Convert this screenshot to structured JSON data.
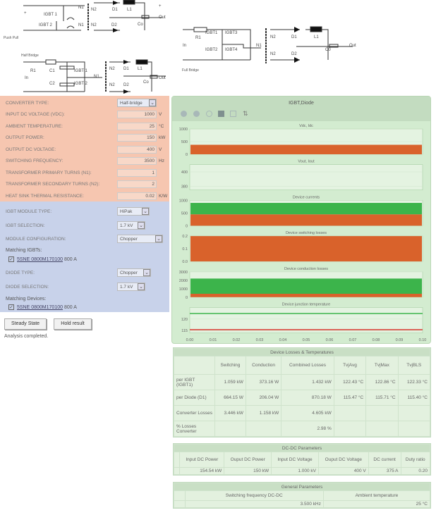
{
  "schematics": {
    "push_pull": {
      "caption": "Push Pull",
      "labels": [
        "IGBT 1",
        "IGBT 2",
        "N1",
        "N1",
        "N2",
        "N2",
        "D1",
        "D2",
        "L1",
        "Co",
        "In",
        "Out",
        "+",
        "-",
        "+",
        "-"
      ]
    },
    "half_bridge": {
      "caption": "Half Bridge",
      "labels": [
        "R1",
        "C1",
        "C2",
        "IGBT 1",
        "IGBT 2",
        "N1",
        "N2",
        "N2",
        "D1",
        "D2",
        "L1",
        "Co",
        "In",
        "Out",
        "+",
        "-",
        "+",
        "-"
      ]
    },
    "full_bridge": {
      "caption": "Full Bridge",
      "labels": [
        "R1",
        "IGBT1",
        "IGBT2",
        "IGBT3",
        "IGBT4",
        "N1",
        "N2",
        "N2",
        "D1",
        "D2",
        "L1",
        "C0",
        "In",
        "Out",
        "+",
        "-",
        "+",
        "-"
      ]
    }
  },
  "converter_form": {
    "rows": [
      {
        "label": "CONVERTER TYPE:",
        "value": "Half-bridge",
        "type": "select"
      },
      {
        "label": "INPUT DC VOLTAGE (VDC):",
        "value": "1000",
        "unit": "V"
      },
      {
        "label": "AMBIENT TEMPERATURE:",
        "value": "25",
        "unit": "°C"
      },
      {
        "label": "OUTPUT POWER:",
        "value": "150",
        "unit": "kW"
      },
      {
        "label": "OUTPUT DC VOLTAGE:",
        "value": "400",
        "unit": "V"
      },
      {
        "label": "SWITCHING FREQUENCY:",
        "value": "3500",
        "unit": "Hz"
      },
      {
        "label": "TRANSFORMER PRIMARY TURNS (N1):",
        "value": "1",
        "unit": ""
      },
      {
        "label": "TRANSFORMER SECONDARY TURNS (N2):",
        "value": "2",
        "unit": ""
      },
      {
        "label": "HEAT SINK THERMAL RESISTANCE:",
        "value": "0.02",
        "unit": "K/W"
      }
    ]
  },
  "device_form": {
    "igbt_module_type": {
      "label": "IGBT MODULE TYPE:",
      "value": "HiPak"
    },
    "igbt_selection": {
      "label": "IGBT SELECTION:",
      "value": "1.7 kV"
    },
    "module_configuration": {
      "label": "MODULE CONFIGURATION:",
      "value": "Chopper"
    },
    "matching_igbts": {
      "label": "Matching IGBTs:",
      "part": "5SNE 0800M170100",
      "rating": "800 A",
      "checked": true
    },
    "diode_type": {
      "label": "DIODE TYPE:",
      "value": "Chopper"
    },
    "diode_selection": {
      "label": "DIODE SELECTION:",
      "value": "1.7 kV"
    },
    "matching_devices": {
      "label": "Matching Devices:",
      "part": "5SNE 0800M170100",
      "rating": "800 A",
      "checked": true
    }
  },
  "actions": {
    "steady_state": "Steady State",
    "hold_result": "Hold result",
    "status": "Analysis completed."
  },
  "chart_panel": {
    "title": "IGBT,Diode",
    "toolbar_icons": [
      "zoom-in-icon",
      "zoom-out-icon",
      "magnifier-icon",
      "select-icon",
      "box-zoom-icon",
      "pan-icon"
    ]
  },
  "chart_data": {
    "type": "area",
    "xlim": [
      0,
      0.1
    ],
    "x_ticks": [
      "0.00",
      "0.01",
      "0.02",
      "0.03",
      "0.04",
      "0.05",
      "0.06",
      "0.07",
      "0.08",
      "0.09",
      "0.10"
    ],
    "colors": {
      "igbt": "#d9622b",
      "diode": "#3cb44b"
    },
    "subplots": [
      {
        "title": "Vdc, Idc",
        "ylim": [
          0,
          1000
        ],
        "yticks": [
          "1000",
          "500",
          "0"
        ],
        "bands": [
          {
            "color": "orange",
            "low": 0,
            "high": 375
          }
        ]
      },
      {
        "title": "Vout, Iout",
        "ylim": [
          375,
          410
        ],
        "yticks": [
          "400",
          "380"
        ],
        "lines": []
      },
      {
        "title": "Device currents",
        "ylim": [
          0,
          1000
        ],
        "yticks": [
          "1000",
          "500",
          "0"
        ],
        "bands": [
          {
            "color": "orange",
            "low": 0,
            "high": 450
          },
          {
            "color": "green",
            "low": 450,
            "high": 900
          }
        ]
      },
      {
        "title": "Device switching losses",
        "ylim": [
          0,
          0.2
        ],
        "yticks": [
          "0.2",
          "0.1",
          "0.0"
        ],
        "bands": [
          {
            "color": "orange",
            "low": 0,
            "high": 0.2
          }
        ]
      },
      {
        "title": "Device conduction losses",
        "ylim": [
          0,
          3000
        ],
        "yticks": [
          "3000",
          "2000",
          "1000",
          "0"
        ],
        "bands": [
          {
            "color": "orange",
            "low": 0,
            "high": 400
          },
          {
            "color": "green",
            "low": 400,
            "high": 2200
          }
        ]
      },
      {
        "title": "Device junction temperature",
        "ylim": [
          114,
          125
        ],
        "yticks": [
          "120",
          "115"
        ],
        "lines": [
          {
            "color": "green",
            "value": 122.4
          },
          {
            "color": "red",
            "value": 115.4
          }
        ]
      }
    ]
  },
  "losses_table": {
    "title": "Device Losses & Temperatures",
    "headers": [
      "",
      "Switching",
      "Conduction",
      "Combined Losses",
      "TvjAvg",
      "TvjMax",
      "TvjBLS"
    ],
    "rows": [
      [
        "per IGBT (IGBT1)",
        "1.059 kW",
        "373.16 W",
        "1.432 kW",
        "122.43 °C",
        "122.86 °C",
        "122.33 °C"
      ],
      [
        "per Diode (D1)",
        "664.15 W",
        "206.04 W",
        "870.18 W",
        "115.47 °C",
        "115.71 °C",
        "115.40 °C"
      ],
      [
        "Converter Losses",
        "3.446 kW",
        "1.158 kW",
        "4.605 kW",
        "",
        "",
        ""
      ],
      [
        "% Losses Converter",
        "",
        "",
        "2.98 %",
        "",
        "",
        ""
      ]
    ]
  },
  "dcdc_table": {
    "title": "DC-DC Parameters",
    "headers": [
      "",
      "Input DC Power",
      "Ouput DC Power",
      "Input DC Voltage",
      "Ouput DC Voltage",
      "DC current",
      "Duty ratio"
    ],
    "row": [
      "",
      "154.54 kW",
      "150 kW",
      "1.000 kV",
      "400 V",
      "375 A",
      "0.20"
    ]
  },
  "general_table": {
    "title": "General Parameters",
    "headers": [
      "",
      "Switching frequency DC-DC",
      "Ambient temperature"
    ],
    "row": [
      "",
      "3.500 kHz",
      "25 °C"
    ]
  }
}
